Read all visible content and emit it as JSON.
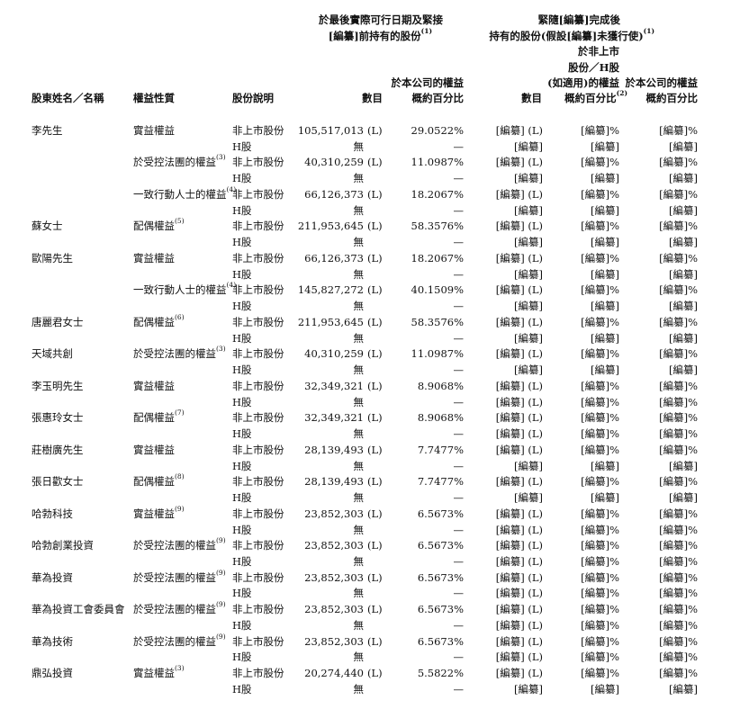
{
  "header": {
    "group_pre_line1": "於最後實際可行日期及緊接",
    "group_pre_line2": "[編纂]前持有的股份",
    "group_pre_note": "(1)",
    "group_post_line1": "緊隨[編纂]完成後",
    "group_post_line2": "持有的股份(假設[編纂]未獲行使)",
    "group_post_note": "(1)",
    "col_name": "股東姓名／名稱",
    "col_nature": "權益性質",
    "col_desc": "股份說明",
    "col_count": "數目",
    "col_pct_line1": "於本公司的權益",
    "col_pct_line2": "概約百分比",
    "col_post_count": "數目",
    "col_post_pct1_line1": "於非上市",
    "col_post_pct1_line2": "股份／H股",
    "col_post_pct1_line3": "(如適用)的權益",
    "col_post_pct1_line4": "概約百分比",
    "col_post_pct1_note": "(2)",
    "col_post_pct2_line1": "於本公司的權益",
    "col_post_pct2_line2": "概約百分比"
  },
  "rows": [
    {
      "name": "李先生",
      "nature": "實益權益",
      "note": "",
      "desc": "非上市股份",
      "count": "105,517,013",
      "flag": "(L)",
      "pct": "29.0522%",
      "pc": "[編纂] (L)",
      "p1": "[編纂]%",
      "p2": "[編纂]%"
    },
    {
      "name": "",
      "nature": "",
      "note": "",
      "desc": "H股",
      "count": "無",
      "flag": "",
      "pct": "—",
      "pc": "[編纂]",
      "p1": "[編纂]",
      "p2": "[編纂]"
    },
    {
      "name": "",
      "nature": "於受控法團的權益",
      "note": "(3)",
      "desc": "非上市股份",
      "count": "40,310,259",
      "flag": "(L)",
      "pct": "11.0987%",
      "pc": "[編纂] (L)",
      "p1": "[編纂]%",
      "p2": "[編纂]%"
    },
    {
      "name": "",
      "nature": "",
      "note": "",
      "desc": "H股",
      "count": "無",
      "flag": "",
      "pct": "—",
      "pc": "[編纂]",
      "p1": "[編纂]",
      "p2": "[編纂]"
    },
    {
      "name": "",
      "nature": "一致行動人士的權益",
      "note": "(4)",
      "desc": "非上市股份",
      "count": "66,126,373",
      "flag": "(L)",
      "pct": "18.2067%",
      "pc": "[編纂] (L)",
      "p1": "[編纂]%",
      "p2": "[編纂]%"
    },
    {
      "name": "",
      "nature": "",
      "note": "",
      "desc": "H股",
      "count": "無",
      "flag": "",
      "pct": "—",
      "pc": "[編纂]",
      "p1": "[編纂]",
      "p2": "[編纂]"
    },
    {
      "name": "蘇女士",
      "nature": "配偶權益",
      "note": "(5)",
      "desc": "非上市股份",
      "count": "211,953,645",
      "flag": "(L)",
      "pct": "58.3576%",
      "pc": "[編纂] (L)",
      "p1": "[編纂]%",
      "p2": "[編纂]%"
    },
    {
      "name": "",
      "nature": "",
      "note": "",
      "desc": "H股",
      "count": "無",
      "flag": "",
      "pct": "—",
      "pc": "[編纂]",
      "p1": "[編纂]",
      "p2": "[編纂]"
    },
    {
      "name": "歐陽先生",
      "nature": "實益權益",
      "note": "",
      "desc": "非上市股份",
      "count": "66,126,373",
      "flag": "(L)",
      "pct": "18.2067%",
      "pc": "[編纂] (L)",
      "p1": "[編纂]%",
      "p2": "[編纂]%"
    },
    {
      "name": "",
      "nature": "",
      "note": "",
      "desc": "H股",
      "count": "無",
      "flag": "",
      "pct": "—",
      "pc": "[編纂]",
      "p1": "[編纂]",
      "p2": "[編纂]"
    },
    {
      "name": "",
      "nature": "一致行動人士的權益",
      "note": "(4)",
      "desc": "非上市股份",
      "count": "145,827,272",
      "flag": "(L)",
      "pct": "40.1509%",
      "pc": "[編纂] (L)",
      "p1": "[編纂]%",
      "p2": "[編纂]%"
    },
    {
      "name": "",
      "nature": "",
      "note": "",
      "desc": "H股",
      "count": "無",
      "flag": "",
      "pct": "—",
      "pc": "[編纂]",
      "p1": "[編纂]",
      "p2": "[編纂]"
    },
    {
      "name": "唐麗君女士",
      "nature": "配偶權益",
      "note": "(6)",
      "desc": "非上市股份",
      "count": "211,953,645",
      "flag": "(L)",
      "pct": "58.3576%",
      "pc": "[編纂] (L)",
      "p1": "[編纂]%",
      "p2": "[編纂]%"
    },
    {
      "name": "",
      "nature": "",
      "note": "",
      "desc": "H股",
      "count": "無",
      "flag": "",
      "pct": "—",
      "pc": "[編纂]",
      "p1": "[編纂]",
      "p2": "[編纂]"
    },
    {
      "name": "天域共創",
      "nature": "於受控法團的權益",
      "note": "(3)",
      "desc": "非上市股份",
      "count": "40,310,259",
      "flag": "(L)",
      "pct": "11.0987%",
      "pc": "[編纂] (L)",
      "p1": "[編纂]%",
      "p2": "[編纂]%"
    },
    {
      "name": "",
      "nature": "",
      "note": "",
      "desc": "H股",
      "count": "無",
      "flag": "",
      "pct": "—",
      "pc": "[編纂]",
      "p1": "[編纂]",
      "p2": "[編纂]"
    },
    {
      "name": "李玉明先生",
      "nature": "實益權益",
      "note": "",
      "desc": "非上市股份",
      "count": "32,349,321",
      "flag": "(L)",
      "pct": "8.9068%",
      "pc": "[編纂] (L)",
      "p1": "[編纂]%",
      "p2": "[編纂]%"
    },
    {
      "name": "",
      "nature": "",
      "note": "",
      "desc": "H股",
      "count": "無",
      "flag": "",
      "pct": "—",
      "pc": "[編纂] (L)",
      "p1": "[編纂]%",
      "p2": "[編纂]%"
    },
    {
      "name": "張惠玲女士",
      "nature": "配偶權益",
      "note": "(7)",
      "desc": "非上市股份",
      "count": "32,349,321",
      "flag": "(L)",
      "pct": "8.9068%",
      "pc": "[編纂] (L)",
      "p1": "[編纂]%",
      "p2": "[編纂]%"
    },
    {
      "name": "",
      "nature": "",
      "note": "",
      "desc": "H股",
      "count": "無",
      "flag": "",
      "pct": "—",
      "pc": "[編纂] (L)",
      "p1": "[編纂]%",
      "p2": "[編纂]%"
    },
    {
      "name": "莊樹廣先生",
      "nature": "實益權益",
      "note": "",
      "desc": "非上市股份",
      "count": "28,139,493",
      "flag": "(L)",
      "pct": "7.7477%",
      "pc": "[編纂] (L)",
      "p1": "[編纂]%",
      "p2": "[編纂]%"
    },
    {
      "name": "",
      "nature": "",
      "note": "",
      "desc": "H股",
      "count": "無",
      "flag": "",
      "pct": "—",
      "pc": "[編纂]",
      "p1": "[編纂]",
      "p2": "[編纂]"
    },
    {
      "name": "張日歡女士",
      "nature": "配偶權益",
      "note": "(8)",
      "desc": "非上市股份",
      "count": "28,139,493",
      "flag": "(L)",
      "pct": "7.7477%",
      "pc": "[編纂] (L)",
      "p1": "[編纂]%",
      "p2": "[編纂]%"
    },
    {
      "name": "",
      "nature": "",
      "note": "",
      "desc": "H股",
      "count": "無",
      "flag": "",
      "pct": "—",
      "pc": "[編纂]",
      "p1": "[編纂]",
      "p2": "[編纂]"
    },
    {
      "name": "哈勃科技",
      "nature": "實益權益",
      "note": "(9)",
      "desc": "非上市股份",
      "count": "23,852,303",
      "flag": "(L)",
      "pct": "6.5673%",
      "pc": "[編纂] (L)",
      "p1": "[編纂]%",
      "p2": "[編纂]%"
    },
    {
      "name": "",
      "nature": "",
      "note": "",
      "desc": "H股",
      "count": "無",
      "flag": "",
      "pct": "—",
      "pc": "[編纂] (L)",
      "p1": "[編纂]%",
      "p2": "[編纂]%"
    },
    {
      "name": "哈勃創業投資",
      "nature": "於受控法團的權益",
      "note": "(9)",
      "desc": "非上市股份",
      "count": "23,852,303",
      "flag": "(L)",
      "pct": "6.5673%",
      "pc": "[編纂] (L)",
      "p1": "[編纂]%",
      "p2": "[編纂]%"
    },
    {
      "name": "",
      "nature": "",
      "note": "",
      "desc": "H股",
      "count": "無",
      "flag": "",
      "pct": "—",
      "pc": "[編纂] (L)",
      "p1": "[編纂]%",
      "p2": "[編纂]%"
    },
    {
      "name": "華為投資",
      "nature": "於受控法團的權益",
      "note": "(9)",
      "desc": "非上市股份",
      "count": "23,852,303",
      "flag": "(L)",
      "pct": "6.5673%",
      "pc": "[編纂] (L)",
      "p1": "[編纂]%",
      "p2": "[編纂]%"
    },
    {
      "name": "",
      "nature": "",
      "note": "",
      "desc": "H股",
      "count": "無",
      "flag": "",
      "pct": "—",
      "pc": "[編纂] (L)",
      "p1": "[編纂]%",
      "p2": "[編纂]%"
    },
    {
      "name": "華為投資工會委員會",
      "nature": "於受控法團的權益",
      "note": "(9)",
      "desc": "非上市股份",
      "count": "23,852,303",
      "flag": "(L)",
      "pct": "6.5673%",
      "pc": "[編纂] (L)",
      "p1": "[編纂]%",
      "p2": "[編纂]%"
    },
    {
      "name": "",
      "nature": "",
      "note": "",
      "desc": "H股",
      "count": "無",
      "flag": "",
      "pct": "—",
      "pc": "[編纂] (L)",
      "p1": "[編纂]%",
      "p2": "[編纂]%"
    },
    {
      "name": "華為技術",
      "nature": "於受控法團的權益",
      "note": "(9)",
      "desc": "非上市股份",
      "count": "23,852,303",
      "flag": "(L)",
      "pct": "6.5673%",
      "pc": "[編纂] (L)",
      "p1": "[編纂]%",
      "p2": "[編纂]%"
    },
    {
      "name": "",
      "nature": "",
      "note": "",
      "desc": "H股",
      "count": "無",
      "flag": "",
      "pct": "—",
      "pc": "[編纂] (L)",
      "p1": "[編纂]%",
      "p2": "[編纂]%"
    },
    {
      "name": "鼎弘投資",
      "nature": "實益權益",
      "note": "(3)",
      "desc": "非上市股份",
      "count": "20,274,440",
      "flag": "(L)",
      "pct": "5.5822%",
      "pc": "[編纂] (L)",
      "p1": "[編纂]%",
      "p2": "[編纂]%"
    },
    {
      "name": "",
      "nature": "",
      "note": "",
      "desc": "H股",
      "count": "無",
      "flag": "",
      "pct": "—",
      "pc": "[編纂]",
      "p1": "[編纂]",
      "p2": "[編纂]"
    }
  ]
}
